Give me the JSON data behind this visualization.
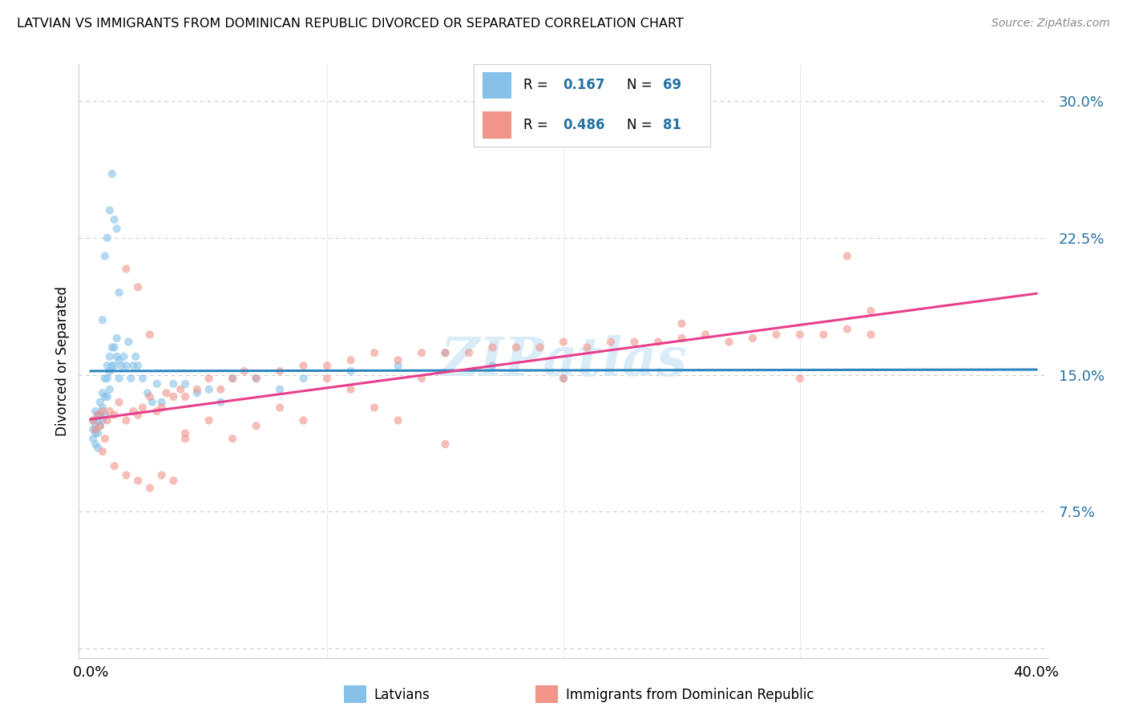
{
  "title": "LATVIAN VS IMMIGRANTS FROM DOMINICAN REPUBLIC DIVORCED OR SEPARATED CORRELATION CHART",
  "source": "Source: ZipAtlas.com",
  "ylabel": "Divorced or Separated",
  "xlim": [
    0.0,
    0.4
  ],
  "ylim": [
    -0.005,
    0.32
  ],
  "yticks": [
    0.0,
    0.075,
    0.15,
    0.225,
    0.3
  ],
  "ytick_labels": [
    "",
    "7.5%",
    "15.0%",
    "22.5%",
    "30.0%"
  ],
  "xticks": [
    0.0,
    0.1,
    0.2,
    0.3,
    0.4
  ],
  "xtick_labels": [
    "0.0%",
    "",
    "",
    "",
    "40.0%"
  ],
  "color_blue": "#85C1E9",
  "color_pink": "#F1948A",
  "color_blue_line": "#2E86C1",
  "color_pink_line": "#E83E8C",
  "color_dashed": "#AED6F1",
  "watermark_color": "#D6EAF8",
  "background_color": "#FFFFFF",
  "grid_color": "#CCCCCC",
  "legend_r1_text": "R = ",
  "legend_r1_val": "0.167",
  "legend_n1_text": "N = ",
  "legend_n1_val": "69",
  "legend_r2_text": "R = ",
  "legend_r2_val": "0.486",
  "legend_n2_text": "N = ",
  "legend_n2_val": "81",
  "lat_x": [
    0.001,
    0.001,
    0.001,
    0.002,
    0.002,
    0.002,
    0.002,
    0.003,
    0.003,
    0.003,
    0.003,
    0.004,
    0.004,
    0.004,
    0.005,
    0.005,
    0.005,
    0.006,
    0.006,
    0.006,
    0.007,
    0.007,
    0.007,
    0.008,
    0.008,
    0.008,
    0.009,
    0.009,
    0.01,
    0.01,
    0.011,
    0.011,
    0.012,
    0.012,
    0.013,
    0.014,
    0.015,
    0.016,
    0.017,
    0.018,
    0.019,
    0.02,
    0.022,
    0.024,
    0.026,
    0.028,
    0.03,
    0.035,
    0.04,
    0.045,
    0.05,
    0.055,
    0.06,
    0.07,
    0.08,
    0.09,
    0.11,
    0.13,
    0.15,
    0.17,
    0.2,
    0.005,
    0.006,
    0.007,
    0.008,
    0.009,
    0.01,
    0.011,
    0.012
  ],
  "lat_y": [
    0.125,
    0.12,
    0.115,
    0.13,
    0.122,
    0.118,
    0.112,
    0.128,
    0.125,
    0.118,
    0.11,
    0.135,
    0.128,
    0.122,
    0.14,
    0.132,
    0.125,
    0.148,
    0.138,
    0.128,
    0.155,
    0.148,
    0.138,
    0.16,
    0.152,
    0.142,
    0.165,
    0.155,
    0.165,
    0.155,
    0.17,
    0.16,
    0.158,
    0.148,
    0.155,
    0.16,
    0.155,
    0.168,
    0.148,
    0.155,
    0.16,
    0.155,
    0.148,
    0.14,
    0.135,
    0.145,
    0.135,
    0.145,
    0.145,
    0.14,
    0.142,
    0.135,
    0.148,
    0.148,
    0.142,
    0.148,
    0.152,
    0.155,
    0.162,
    0.155,
    0.148,
    0.18,
    0.215,
    0.225,
    0.24,
    0.26,
    0.235,
    0.23,
    0.195
  ],
  "dom_x": [
    0.001,
    0.002,
    0.003,
    0.004,
    0.005,
    0.006,
    0.007,
    0.008,
    0.01,
    0.012,
    0.015,
    0.018,
    0.02,
    0.022,
    0.025,
    0.028,
    0.03,
    0.032,
    0.035,
    0.038,
    0.04,
    0.045,
    0.05,
    0.055,
    0.06,
    0.065,
    0.07,
    0.08,
    0.09,
    0.1,
    0.11,
    0.12,
    0.13,
    0.14,
    0.15,
    0.16,
    0.17,
    0.18,
    0.19,
    0.2,
    0.21,
    0.22,
    0.23,
    0.24,
    0.25,
    0.26,
    0.27,
    0.28,
    0.29,
    0.3,
    0.31,
    0.32,
    0.33,
    0.005,
    0.01,
    0.015,
    0.02,
    0.025,
    0.03,
    0.035,
    0.04,
    0.05,
    0.06,
    0.07,
    0.08,
    0.09,
    0.1,
    0.11,
    0.12,
    0.13,
    0.14,
    0.15,
    0.2,
    0.25,
    0.3,
    0.32,
    0.33,
    0.015,
    0.02,
    0.025,
    0.04
  ],
  "dom_y": [
    0.125,
    0.12,
    0.128,
    0.122,
    0.13,
    0.115,
    0.125,
    0.13,
    0.128,
    0.135,
    0.125,
    0.13,
    0.128,
    0.132,
    0.138,
    0.13,
    0.132,
    0.14,
    0.138,
    0.142,
    0.138,
    0.142,
    0.148,
    0.142,
    0.148,
    0.152,
    0.148,
    0.152,
    0.155,
    0.155,
    0.158,
    0.162,
    0.158,
    0.162,
    0.162,
    0.162,
    0.165,
    0.165,
    0.165,
    0.168,
    0.165,
    0.168,
    0.168,
    0.168,
    0.17,
    0.172,
    0.168,
    0.17,
    0.172,
    0.172,
    0.172,
    0.175,
    0.172,
    0.108,
    0.1,
    0.095,
    0.092,
    0.088,
    0.095,
    0.092,
    0.118,
    0.125,
    0.115,
    0.122,
    0.132,
    0.125,
    0.148,
    0.142,
    0.132,
    0.125,
    0.148,
    0.112,
    0.148,
    0.178,
    0.148,
    0.215,
    0.185,
    0.208,
    0.198,
    0.172,
    0.115
  ]
}
